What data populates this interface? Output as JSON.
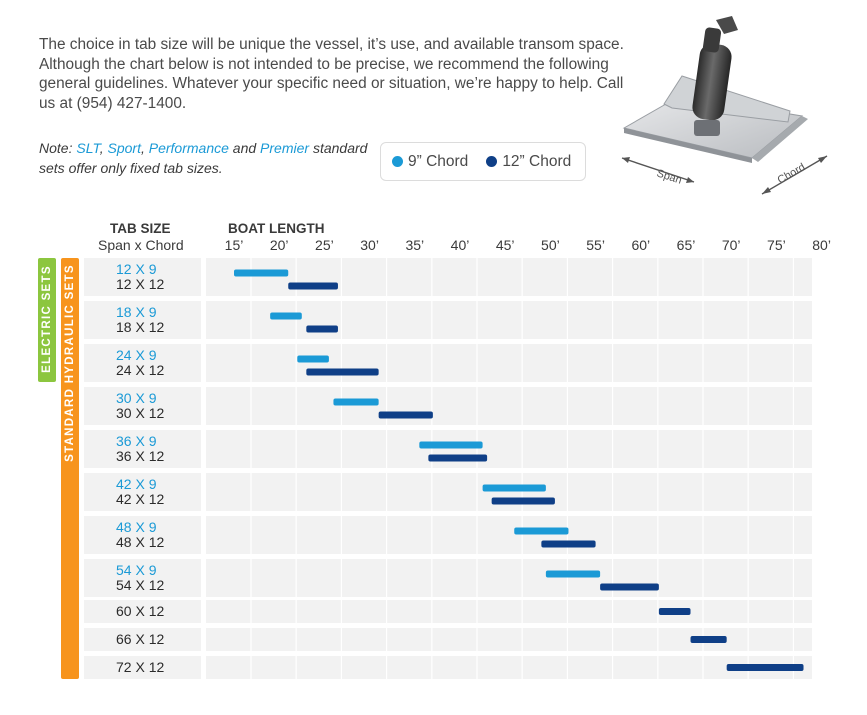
{
  "intro_text": "The choice in tab size will be unique the vessel, it’s use, and available transom space. Although the chart below is not intended to be precise, we recommend the following general guidelines. Whatever your specific need or situation, we’re happy to help. Call us at (954) 427-1400.",
  "note": {
    "prefix": "Note: ",
    "slt": "SLT",
    "sep1": ", ",
    "sport": "Sport",
    "sep2": ", ",
    "performance": "Performance",
    "and": " and ",
    "premier": "Premier",
    "suffix": " standard sets offer only fixed tab sizes."
  },
  "legend": {
    "chord9": "9” Chord",
    "chord12": "12” Chord"
  },
  "product_labels": {
    "span": "Span",
    "chord": "Chord"
  },
  "group_labels": {
    "electric": "ELECTRIC SETS",
    "hydraulic": "STANDARD HYDRAULIC SETS"
  },
  "colors": {
    "chord9": "#1b9ad6",
    "chord12": "#0f3f87",
    "electric": "#8cc63f",
    "hydraulic": "#f7941d",
    "row_bg": "#f2f2f2"
  },
  "chart_data": {
    "type": "bar",
    "orientation": "horizontal-range",
    "header_tab_size": "TAB SIZE",
    "header_span_chord": "Span x Chord",
    "xlabel": "BOAT LENGTH",
    "x_ticks": [
      "15’",
      "20’",
      "25’",
      "30’",
      "35’",
      "40’",
      "45’",
      "50’",
      "55’",
      "60’",
      "65’",
      "70’",
      "75’",
      "80’"
    ],
    "xlim": [
      15,
      80
    ],
    "series": [
      {
        "name": "9” Chord",
        "key": "chord9"
      },
      {
        "name": "12” Chord",
        "key": "chord12"
      }
    ],
    "rows": [
      {
        "label9": "12 X 9",
        "label12": "12 X 12",
        "chord9": [
          15,
          21
        ],
        "chord12": [
          21,
          26.5
        ]
      },
      {
        "label9": "18 X 9",
        "label12": "18 X 12",
        "chord9": [
          19,
          22.5
        ],
        "chord12": [
          23,
          26.5
        ]
      },
      {
        "label9": "24 X 9",
        "label12": "24 X 12",
        "chord9": [
          22,
          25.5
        ],
        "chord12": [
          23,
          31
        ]
      },
      {
        "label9": "30 X 9",
        "label12": "30 X 12",
        "chord9": [
          26,
          31
        ],
        "chord12": [
          31,
          37
        ]
      },
      {
        "label9": "36 X 9",
        "label12": "36 X 12",
        "chord9": [
          35.5,
          42.5
        ],
        "chord12": [
          36.5,
          43
        ]
      },
      {
        "label9": "42 X 9",
        "label12": "42 X 12",
        "chord9": [
          42.5,
          49.5
        ],
        "chord12": [
          43.5,
          50.5
        ]
      },
      {
        "label9": "48 X 9",
        "label12": "48 X 12",
        "chord9": [
          46,
          52
        ],
        "chord12": [
          49,
          55
        ]
      },
      {
        "label9": "54 X 9",
        "label12": "54 X 12",
        "chord9": [
          49.5,
          55.5
        ],
        "chord12": [
          55.5,
          62
        ]
      },
      {
        "label9": null,
        "label12": "60 X 12",
        "chord9": null,
        "chord12": [
          62,
          65.5
        ]
      },
      {
        "label9": null,
        "label12": "66 X 12",
        "chord9": null,
        "chord12": [
          65.5,
          69.5
        ]
      },
      {
        "label9": null,
        "label12": "72 X 12",
        "chord9": null,
        "chord12": [
          69.5,
          78
        ]
      }
    ]
  }
}
